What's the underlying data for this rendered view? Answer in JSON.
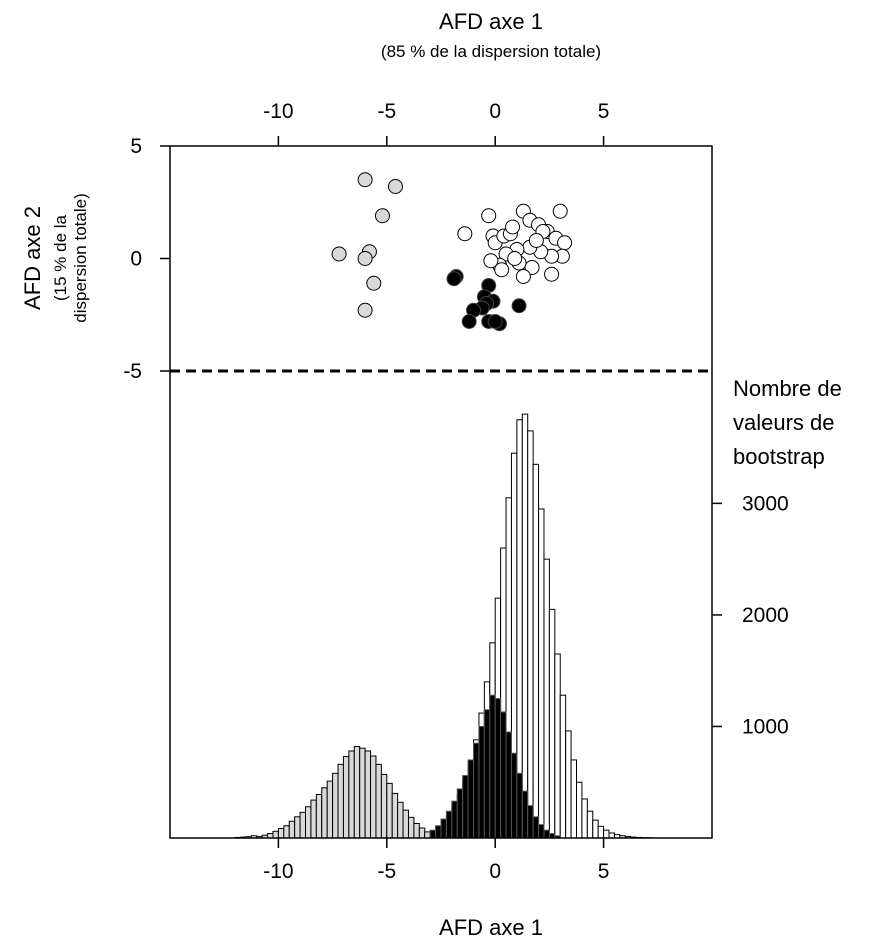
{
  "chart_data": {
    "type": "scatter",
    "x_axis_top": {
      "title": "AFD axe 1",
      "subtitle": "(85 % de la dispersion totale)",
      "ticks": [
        -10,
        -5,
        0,
        5
      ],
      "tick_labels": [
        "-10",
        "-5",
        "0",
        "5"
      ]
    },
    "x_axis_bottom": {
      "title": "AFD axe 1",
      "ticks": [
        -10,
        -5,
        0,
        5
      ],
      "tick_labels": [
        "-10",
        "-5",
        "0",
        "5"
      ]
    },
    "xlim": [
      -15,
      10
    ],
    "y_axis_left": {
      "title": "AFD axe 2",
      "subtitle_lines": [
        "(15 % de la",
        "dispersion totale)"
      ],
      "ticks": [
        5,
        0,
        -5
      ],
      "tick_labels": [
        "5",
        "0",
        "-5"
      ],
      "ylim": [
        -5,
        5
      ]
    },
    "y_axis_right": {
      "title_lines": [
        "Nombre de",
        "valeurs de",
        "bootstrap"
      ],
      "ticks": [
        1000,
        2000,
        3000
      ],
      "tick_labels": [
        "1000",
        "2000",
        "3000"
      ],
      "ylim": [
        0,
        3900
      ]
    },
    "scatter": {
      "series": [
        {
          "color": "#d9d9d9",
          "points": [
            [
              -6.0,
              3.5
            ],
            [
              -4.6,
              3.2
            ],
            [
              -5.2,
              1.9
            ],
            [
              -7.2,
              0.2
            ],
            [
              -5.8,
              0.3
            ],
            [
              -6.0,
              0.0
            ],
            [
              -5.6,
              -1.1
            ],
            [
              -6.0,
              -2.3
            ]
          ]
        },
        {
          "color": "#ffffff",
          "points": [
            [
              -0.3,
              1.9
            ],
            [
              -1.4,
              1.1
            ],
            [
              -0.1,
              1.0
            ],
            [
              0.0,
              0.7
            ],
            [
              0.4,
              1.0
            ],
            [
              0.7,
              1.1
            ],
            [
              0.8,
              1.4
            ],
            [
              1.3,
              2.1
            ],
            [
              1.6,
              1.7
            ],
            [
              2.0,
              1.5
            ],
            [
              2.4,
              1.2
            ],
            [
              3.0,
              2.1
            ],
            [
              2.8,
              0.9
            ],
            [
              3.2,
              0.7
            ],
            [
              3.1,
              0.1
            ],
            [
              2.6,
              0.1
            ],
            [
              2.1,
              0.3
            ],
            [
              1.6,
              0.5
            ],
            [
              1.0,
              0.4
            ],
            [
              0.5,
              0.2
            ],
            [
              0.2,
              -0.3
            ],
            [
              1.1,
              -0.2
            ],
            [
              1.7,
              -0.4
            ],
            [
              2.6,
              -0.7
            ],
            [
              1.3,
              -0.8
            ],
            [
              0.3,
              -0.5
            ],
            [
              -0.2,
              -0.1
            ],
            [
              0.9,
              0.0
            ],
            [
              2.2,
              1.2
            ],
            [
              1.9,
              0.8
            ]
          ]
        },
        {
          "color": "#000000",
          "points": [
            [
              -1.8,
              -0.8
            ],
            [
              -1.9,
              -0.9
            ],
            [
              -0.3,
              -1.2
            ],
            [
              -0.5,
              -1.7
            ],
            [
              -0.1,
              -1.9
            ],
            [
              -0.4,
              -2.0
            ],
            [
              -0.6,
              -2.2
            ],
            [
              -1.0,
              -2.3
            ],
            [
              1.1,
              -2.1
            ],
            [
              -1.2,
              -2.8
            ],
            [
              -0.3,
              -2.8
            ],
            [
              0.2,
              -2.9
            ],
            [
              0.0,
              -2.8
            ]
          ]
        }
      ]
    },
    "histogram": {
      "bin_width": 0.25,
      "series": [
        {
          "color": "#d9d9d9",
          "bins": [
            [
              -11,
              -10.75,
              12
            ],
            [
              -10.75,
              -10.5,
              25
            ],
            [
              -10.5,
              -10.25,
              40
            ],
            [
              -10.25,
              -10,
              60
            ],
            [
              -10,
              -9.75,
              85
            ],
            [
              -9.75,
              -9.5,
              110
            ],
            [
              -9.5,
              -9.25,
              150
            ],
            [
              -9.25,
              -9,
              190
            ],
            [
              -9,
              -8.75,
              230
            ],
            [
              -8.75,
              -8.5,
              280
            ],
            [
              -8.5,
              -8.25,
              340
            ],
            [
              -8.25,
              -8,
              390
            ],
            [
              -8,
              -7.75,
              450
            ],
            [
              -7.75,
              -7.5,
              510
            ],
            [
              -7.5,
              -7.25,
              580
            ],
            [
              -7.25,
              -7,
              660
            ],
            [
              -7,
              -6.75,
              730
            ],
            [
              -6.75,
              -6.5,
              780
            ],
            [
              -6.5,
              -6.25,
              820
            ],
            [
              -6.25,
              -6,
              805
            ],
            [
              -6,
              -5.75,
              780
            ],
            [
              -5.75,
              -5.5,
              735
            ],
            [
              -5.5,
              -5.25,
              660
            ],
            [
              -5.25,
              -5,
              570
            ],
            [
              -5,
              -4.75,
              490
            ],
            [
              -4.75,
              -4.5,
              400
            ],
            [
              -4.5,
              -4.25,
              320
            ],
            [
              -4.25,
              -4,
              250
            ],
            [
              -4,
              -3.75,
              185
            ],
            [
              -3.75,
              -3.5,
              130
            ],
            [
              -3.5,
              -3.25,
              90
            ],
            [
              -3.25,
              -3,
              55
            ],
            [
              -3,
              -2.75,
              30
            ],
            [
              -2.75,
              -2.5,
              15
            ]
          ]
        },
        {
          "color": "#ffffff",
          "bins": [
            [
              -12,
              -11.75,
              5
            ],
            [
              -11.75,
              -11.5,
              8
            ],
            [
              -11.5,
              -11.25,
              12
            ],
            [
              -11.25,
              -11,
              20
            ],
            [
              -3,
              -2.75,
              60
            ],
            [
              -2.75,
              -2.5,
              90
            ],
            [
              -2.5,
              -2.25,
              140
            ],
            [
              -2.25,
              -2,
              200
            ],
            [
              -2,
              -1.75,
              290
            ],
            [
              -1.75,
              -1.5,
              390
            ],
            [
              -1.5,
              -1.25,
              520
            ],
            [
              -1.25,
              -1,
              680
            ],
            [
              -1,
              -0.75,
              880
            ],
            [
              -0.75,
              -0.5,
              1120
            ],
            [
              -0.5,
              -0.25,
              1400
            ],
            [
              -0.25,
              0,
              1750
            ],
            [
              0,
              0.25,
              2150
            ],
            [
              0.25,
              0.5,
              2600
            ],
            [
              0.5,
              0.75,
              3050
            ],
            [
              0.75,
              1,
              3450
            ],
            [
              1,
              1.25,
              3750
            ],
            [
              1.25,
              1.5,
              3800
            ],
            [
              1.5,
              1.75,
              3650
            ],
            [
              1.75,
              2,
              3350
            ],
            [
              2,
              2.25,
              2950
            ],
            [
              2.25,
              2.5,
              2500
            ],
            [
              2.5,
              2.75,
              2050
            ],
            [
              2.75,
              3,
              1650
            ],
            [
              3,
              3.25,
              1280
            ],
            [
              3.25,
              3.5,
              960
            ],
            [
              3.5,
              3.75,
              700
            ],
            [
              3.75,
              4,
              500
            ],
            [
              4,
              4.25,
              350
            ],
            [
              4.25,
              4.5,
              240
            ],
            [
              4.5,
              4.75,
              160
            ],
            [
              4.75,
              5,
              105
            ],
            [
              5,
              5.25,
              70
            ],
            [
              5.25,
              5.5,
              45
            ],
            [
              5.5,
              5.75,
              30
            ],
            [
              5.75,
              6,
              20
            ],
            [
              6,
              6.25,
              13
            ],
            [
              6.25,
              6.5,
              8
            ],
            [
              6.5,
              6.75,
              5
            ],
            [
              6.75,
              7,
              3
            ],
            [
              7,
              7.25,
              2
            ]
          ]
        },
        {
          "color": "#000000",
          "bins": [
            [
              -3,
              -2.75,
              70
            ],
            [
              -2.75,
              -2.5,
              110
            ],
            [
              -2.5,
              -2.25,
              170
            ],
            [
              -2.25,
              -2,
              240
            ],
            [
              -2,
              -1.75,
              330
            ],
            [
              -1.75,
              -1.5,
              440
            ],
            [
              -1.5,
              -1.25,
              560
            ],
            [
              -1.25,
              -1,
              700
            ],
            [
              -1,
              -0.75,
              850
            ],
            [
              -0.75,
              -0.5,
              1000
            ],
            [
              -0.5,
              -0.25,
              1150
            ],
            [
              -0.25,
              0,
              1280
            ],
            [
              0,
              0.25,
              1250
            ],
            [
              0.25,
              0.5,
              1130
            ],
            [
              0.5,
              0.75,
              950
            ],
            [
              0.75,
              1,
              760
            ],
            [
              1,
              1.25,
              580
            ],
            [
              1.25,
              1.5,
              420
            ],
            [
              1.5,
              1.75,
              290
            ],
            [
              1.75,
              2,
              190
            ],
            [
              2,
              2.25,
              120
            ],
            [
              2.25,
              2.5,
              70
            ],
            [
              2.5,
              2.75,
              40
            ],
            [
              2.75,
              3,
              20
            ]
          ]
        }
      ]
    },
    "separator": {
      "style": "dashed",
      "at_y": -5
    }
  }
}
